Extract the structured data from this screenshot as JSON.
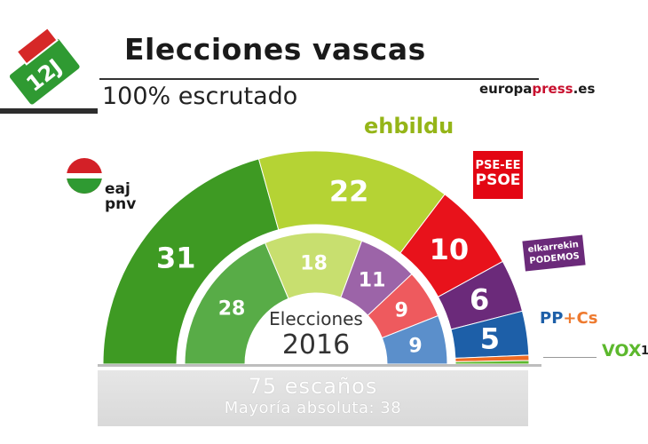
{
  "header": {
    "badge": "12J",
    "title": "Elecciones vascas",
    "subtitle": "100% escrutado",
    "brand_a": "europa",
    "brand_b": "press",
    "brand_c": ".es"
  },
  "logos": {
    "pnv_a": "eaj",
    "pnv_b": "pnv",
    "ehbildu": "ehbildu",
    "psoe_a": "PSE-EE",
    "psoe_b": "PSOE",
    "podemos_a": "elkarrekin",
    "podemos_b": "PODEMOS",
    "pp": "PP",
    "plus": "+",
    "cs": "Cs",
    "vox": "VOX",
    "vox_seats": "1"
  },
  "chart_data": {
    "type": "parliament-semicircle",
    "total_seats": 75,
    "outer_ring": {
      "label": "",
      "values": [
        31,
        22,
        10,
        6,
        5,
        1
      ],
      "colors": [
        "#3e9a23",
        "#b5d334",
        "#e8121b",
        "#6b2a7a",
        "#1d5fa8",
        "#ee6a22",
        "#5cb82d"
      ]
    },
    "inner_ring": {
      "label_line1": "Elecciones",
      "label_line2": "2016",
      "values": [
        28,
        18,
        11,
        9,
        9
      ],
      "colors": [
        "#58ac47",
        "#c8df6f",
        "#9c64a8",
        "#ee5a5e",
        "#5b8fcb"
      ]
    },
    "outer_slices": [
      {
        "value": 31,
        "color": "#3e9a23"
      },
      {
        "value": 22,
        "color": "#b5d334"
      },
      {
        "value": 10,
        "color": "#e8121b"
      },
      {
        "value": 6,
        "color": "#6b2a7a"
      },
      {
        "value": 5,
        "color": "#1d5fa8"
      },
      {
        "value": 0.6,
        "color": "#ee6a22"
      },
      {
        "value": 0.4,
        "color": "#5cb82d"
      }
    ],
    "outer_labels": [
      "31",
      "22",
      "10",
      "6",
      "5"
    ],
    "inner_labels": [
      "28",
      "18",
      "11",
      "9",
      "9"
    ]
  },
  "footer": {
    "seats": "75 escaños",
    "majority": "Mayoría absoluta: 38"
  }
}
